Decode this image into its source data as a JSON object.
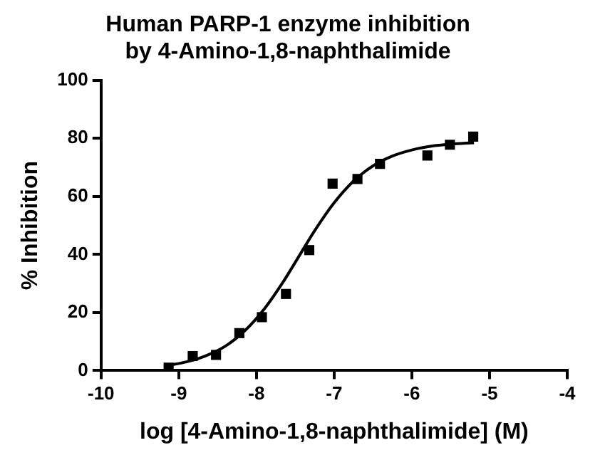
{
  "chart_data": {
    "type": "scatter",
    "title": [
      "Human PARP-1 enzyme inhibition",
      "by 4-Amino-1,8-naphthalimide"
    ],
    "xlabel": "log [4-Amino-1,8-naphthalimide] (M)",
    "ylabel": "% Inhibition",
    "xlim": [
      -10,
      -4
    ],
    "xticks": [
      -10,
      -9,
      -8,
      -7,
      -6,
      -5,
      -4
    ],
    "ylim": [
      0,
      100
    ],
    "yticks": [
      0,
      20,
      40,
      60,
      80,
      100
    ],
    "grid": false,
    "legend": false,
    "series": [
      {
        "type": "scatter",
        "color": "#000000",
        "marker": "square",
        "x": [
          -9.13,
          -8.82,
          -8.52,
          -8.22,
          -7.93,
          -7.62,
          -7.32,
          -7.02,
          -6.7,
          -6.41,
          -5.8,
          -5.51,
          -5.21
        ],
        "values": [
          1,
          5,
          5.4,
          12.9,
          18.4,
          26.4,
          41.5,
          64.4,
          66,
          71.2,
          74.1,
          77.8,
          80.6
        ]
      },
      {
        "type": "line",
        "color": "#000000",
        "marker": "none",
        "line_style": "solid",
        "x": [
          -9.15,
          -8.9,
          -8.65,
          -8.4,
          -8.15,
          -7.9,
          -7.65,
          -7.45,
          -7.25,
          -7,
          -6.75,
          -6.5,
          -6.25,
          -6,
          -5.75,
          -5.5,
          -5.2
        ],
        "values": [
          1.7,
          3,
          5.1,
          8.4,
          13.7,
          21.2,
          30.8,
          39.5,
          48.2,
          57.8,
          65.3,
          70.5,
          73.9,
          76,
          77.3,
          78,
          78.5
        ]
      }
    ]
  }
}
